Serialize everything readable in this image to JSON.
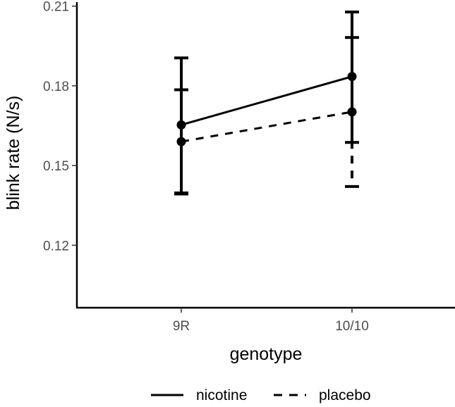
{
  "chart_data": {
    "type": "line",
    "title": "",
    "xlabel": "genotype",
    "ylabel": "blink rate (N/s)",
    "categories": [
      "9R",
      "10/10"
    ],
    "y_ticks": [
      "0.12",
      "0.15",
      "0.18",
      "0.21"
    ],
    "y_tick_values": [
      0.12,
      0.15,
      0.18,
      0.21
    ],
    "ylim": [
      0.0965,
      0.2115
    ],
    "grid": false,
    "legend_position": "bottom",
    "series": [
      {
        "name": "nicotine",
        "linestyle": "solid",
        "values": [
          0.1653,
          0.1835
        ],
        "lower": [
          0.1397,
          0.1587
        ],
        "upper": [
          0.1905,
          0.2078
        ]
      },
      {
        "name": "placebo",
        "linestyle": "dashed",
        "values": [
          0.159,
          0.1702
        ],
        "lower": [
          0.1393,
          0.1421
        ],
        "upper": [
          0.1785,
          0.1982
        ]
      }
    ]
  }
}
